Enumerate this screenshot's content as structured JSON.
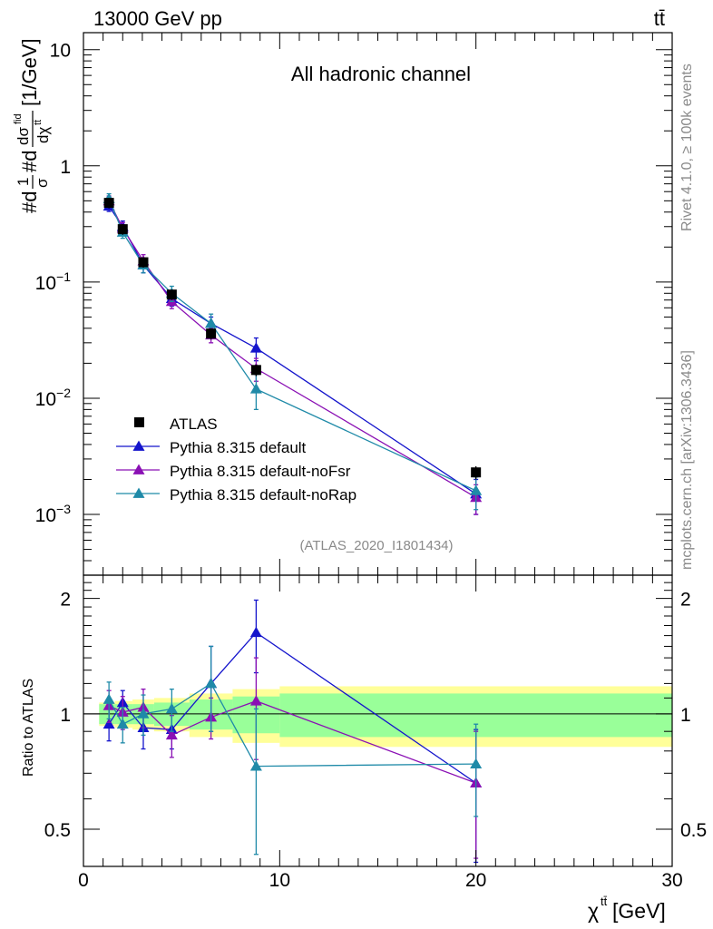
{
  "header": {
    "process": "13000 GeV pp",
    "tag": "tt̄"
  },
  "side": {
    "rivet": "Rivet 4.1.0, ≥ 100k events",
    "mcplots": "mcplots.cern.ch [arXiv:1306.3436]"
  },
  "chart_data": [
    {
      "type": "line",
      "panel": "main",
      "title": "All hadronic channel",
      "analysis_id": "(ATLAS_2020_I1801434)",
      "ylabel_parts": {
        "prefix": "#d",
        "frac1_num": "1",
        "frac1_den": "σ",
        "mid": "#d",
        "frac2_num": "dσ",
        "frac2_num_sup": "fid",
        "frac2_den": "dχ",
        "frac2_den_sup": "tt̄",
        "unit": "[1/GeV]"
      },
      "yscale": "log",
      "ylim": [
        0.0003,
        14
      ],
      "xlim": [
        0,
        30
      ],
      "yticks": [
        {
          "value": 10,
          "label": "10"
        },
        {
          "value": 1,
          "label": "1"
        },
        {
          "value": 0.1,
          "label": "10",
          "sup": "−1"
        },
        {
          "value": 0.01,
          "label": "10",
          "sup": "−2"
        },
        {
          "value": 0.001,
          "label": "10",
          "sup": "−3"
        }
      ],
      "legend_position": "middle-left",
      "data": {
        "name": "ATLAS",
        "x": [
          1.3,
          2.0,
          3.05,
          4.5,
          6.5,
          8.8,
          20.0
        ],
        "y": [
          0.48,
          0.285,
          0.148,
          0.078,
          0.036,
          0.0175,
          0.0023
        ],
        "err": [
          0.05,
          0.03,
          0.015,
          0.008,
          0.004,
          0.002,
          0.0003
        ]
      },
      "series": [
        {
          "name": "Pythia 8.315 default",
          "color": "#1414cc",
          "x": [
            1.3,
            2.0,
            3.05,
            4.5,
            6.5,
            8.8,
            20.0
          ],
          "y": [
            0.45,
            0.3,
            0.14,
            0.072,
            0.044,
            0.027,
            0.0015
          ],
          "err": [
            0.045,
            0.035,
            0.02,
            0.01,
            0.006,
            0.006,
            0.0005
          ]
        },
        {
          "name": "Pythia 8.315 default-noFsr",
          "color": "#8a10b4",
          "x": [
            1.3,
            2.0,
            3.05,
            4.5,
            6.5,
            8.8,
            20.0
          ],
          "y": [
            0.5,
            0.29,
            0.152,
            0.068,
            0.035,
            0.018,
            0.0014
          ],
          "err": [
            0.05,
            0.035,
            0.02,
            0.009,
            0.005,
            0.004,
            0.0004
          ]
        },
        {
          "name": "Pythia 8.315 default-noRap",
          "color": "#1f8aa8",
          "x": [
            1.3,
            2.0,
            3.05,
            4.5,
            6.5,
            8.8,
            20.0
          ],
          "y": [
            0.52,
            0.268,
            0.14,
            0.08,
            0.044,
            0.012,
            0.0016
          ],
          "err": [
            0.055,
            0.03,
            0.02,
            0.012,
            0.009,
            0.004,
            0.0005
          ]
        }
      ]
    },
    {
      "type": "line",
      "panel": "ratio",
      "ylabel": "Ratio to ATLAS",
      "xlabel": "χ",
      "xlabel_sup": "tt̄",
      "xlabel_unit": " [GeV]",
      "yscale": "log",
      "ylim": [
        0.4,
        2.3
      ],
      "xlim": [
        0,
        30
      ],
      "xticks": [
        {
          "value": 0,
          "label": "0"
        },
        {
          "value": 10,
          "label": "10"
        },
        {
          "value": 20,
          "label": "20"
        },
        {
          "value": 30,
          "label": "30"
        }
      ],
      "yticks": [
        {
          "value": 2,
          "label": "2"
        },
        {
          "value": 1,
          "label": "1"
        },
        {
          "value": 0.5,
          "label": "0.5"
        }
      ],
      "bands": {
        "edges": [
          0.8,
          1.6,
          2.5,
          3.6,
          5.4,
          7.6,
          10.0,
          30.0
        ],
        "green": [
          0.06,
          0.06,
          0.06,
          0.07,
          0.09,
          0.11,
          0.13
        ],
        "yellow": [
          0.07,
          0.08,
          0.09,
          0.1,
          0.13,
          0.16,
          0.18
        ]
      },
      "series": [
        {
          "name": "Pythia 8.315 default",
          "color": "#1414cc",
          "x": [
            1.3,
            2.0,
            3.05,
            4.5,
            6.5,
            8.8,
            20.0
          ],
          "y": [
            0.94,
            1.07,
            0.92,
            0.91,
            1.2,
            1.63,
            0.66
          ],
          "err": [
            0.09,
            0.08,
            0.11,
            0.1,
            0.3,
            0.35,
            0.25
          ]
        },
        {
          "name": "Pythia 8.315 default-noFsr",
          "color": "#8a10b4",
          "x": [
            1.3,
            2.0,
            3.05,
            4.5,
            6.5,
            8.8,
            20.0
          ],
          "y": [
            1.05,
            1.01,
            1.04,
            0.88,
            0.98,
            1.08,
            0.66
          ],
          "err": [
            0.1,
            0.1,
            0.12,
            0.11,
            0.12,
            0.32,
            0.24
          ]
        },
        {
          "name": "Pythia 8.315 default-noRap",
          "color": "#1f8aa8",
          "x": [
            1.3,
            2.0,
            3.05,
            4.5,
            6.5,
            8.8,
            20.0
          ],
          "y": [
            1.09,
            0.94,
            1.0,
            1.03,
            1.2,
            0.73,
            0.74
          ],
          "err": [
            0.12,
            0.1,
            0.12,
            0.13,
            0.3,
            0.3,
            0.2
          ]
        }
      ]
    }
  ]
}
